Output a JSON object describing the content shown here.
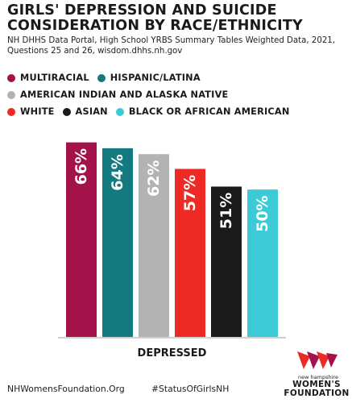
{
  "header": {
    "title": "GIRLS' DEPRESSION AND SUICIDE\nCONSIDERATION BY RACE/ETHNICITY",
    "subtitle": "NH DHHS Data Portal, High School YRBS Summary Tables Weighted Data, 2021, Questions 25 and 26, wisdom.dhhs.nh.gov"
  },
  "legend": {
    "rows": [
      [
        {
          "label": "MULTIRACIAL",
          "color": "#a4124a"
        },
        {
          "label": "HISPANIC/LATINA",
          "color": "#137b80"
        }
      ],
      [
        {
          "label": "AMERICAN INDIAN AND ALASKA NATIVE",
          "color": "#b3b3b3"
        }
      ],
      [
        {
          "label": "WHITE",
          "color": "#ee2a24"
        },
        {
          "label": "ASIAN",
          "color": "#1a1a1a"
        },
        {
          "label": "BLACK OR AFRICAN AMERICAN",
          "color": "#3ccbd6"
        }
      ]
    ]
  },
  "chart_data": {
    "type": "bar",
    "categories": [
      "DEPRESSED"
    ],
    "xlabel": "DEPRESSED",
    "ylim": [
      0,
      70
    ],
    "grid": false,
    "legend_position": "top",
    "series": [
      {
        "name": "MULTIRACIAL",
        "values": [
          66
        ],
        "label": "66%",
        "color": "#a4124a"
      },
      {
        "name": "HISPANIC/LATINA",
        "values": [
          64
        ],
        "label": "64%",
        "color": "#137b80"
      },
      {
        "name": "AMERICAN INDIAN AND ALASKA NATIVE",
        "values": [
          62
        ],
        "label": "62%",
        "color": "#b3b3b3"
      },
      {
        "name": "WHITE",
        "values": [
          57
        ],
        "label": "57%",
        "color": "#ee2a24"
      },
      {
        "name": "ASIAN",
        "values": [
          51
        ],
        "label": "51%",
        "color": "#1a1a1a"
      },
      {
        "name": "BLACK OR AFRICAN AMERICAN",
        "values": [
          50
        ],
        "label": "50%",
        "color": "#3ccbd6"
      }
    ]
  },
  "footer": {
    "website": "NHWomensFoundation.Org",
    "hashtag": "#StatusOfGirlsNH"
  },
  "logo": {
    "small_text": "new hampshire",
    "big_text": "WOMEN'S\nFOUNDATION"
  }
}
